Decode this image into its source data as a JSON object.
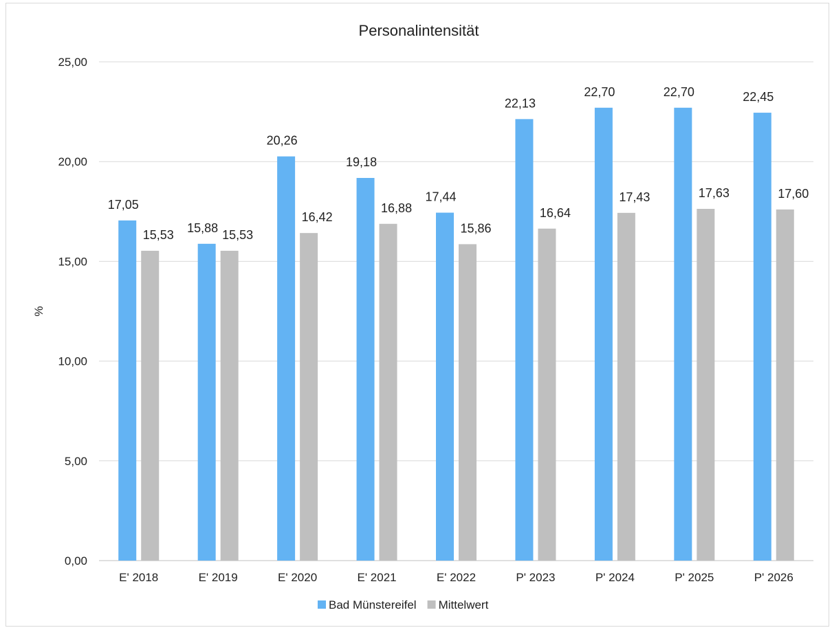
{
  "chart_data": {
    "type": "bar",
    "title": "Personalintensität",
    "xlabel": "",
    "ylabel": "%",
    "ylim": [
      0,
      25
    ],
    "ytick_labels": [
      "0,00",
      "5,00",
      "10,00",
      "15,00",
      "20,00",
      "25,00"
    ],
    "ytick_values": [
      0,
      5,
      10,
      15,
      20,
      25
    ],
    "grid": true,
    "legend_position": "bottom",
    "categories": [
      "E' 2018",
      "E' 2019",
      "E' 2020",
      "E' 2021",
      "E' 2022",
      "P' 2023",
      "P' 2024",
      "P' 2025",
      "P' 2026"
    ],
    "series": [
      {
        "name": "Bad Münstereifel",
        "color": "#63b3f3",
        "values": [
          17.05,
          15.88,
          20.26,
          19.18,
          17.44,
          22.13,
          22.7,
          22.7,
          22.45
        ],
        "labels": [
          "17,05",
          "15,88",
          "20,26",
          "19,18",
          "17,44",
          "22,13",
          "22,70",
          "22,70",
          "22,45"
        ]
      },
      {
        "name": "Mittelwert",
        "color": "#bfbfbf",
        "values": [
          15.53,
          15.53,
          16.42,
          16.88,
          15.86,
          16.64,
          17.43,
          17.63,
          17.6
        ],
        "labels": [
          "15,53",
          "15,53",
          "16,42",
          "16,88",
          "15,86",
          "16,64",
          "17,43",
          "17,63",
          "17,60"
        ]
      }
    ]
  }
}
